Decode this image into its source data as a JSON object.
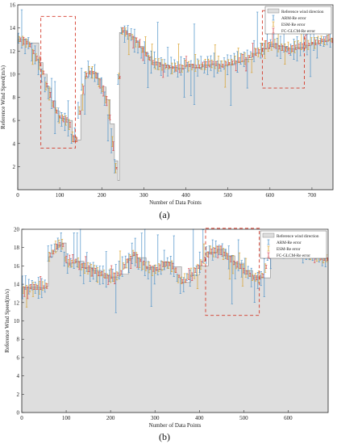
{
  "panel_labels": [
    "(a)",
    "(b)"
  ],
  "colors": {
    "reference_fill": "#dedede",
    "reference_edge": "#8c8c8c",
    "arm": "#4a90c8",
    "esm": "#d8a02a",
    "fcgl": "#d6434a",
    "highlight": "#d43a2a"
  },
  "chart_data": [
    {
      "type": "area",
      "panel": "(a)",
      "title": "",
      "xlabel": "Number of Data Points",
      "ylabel": "Reference Wind Speed(m/s)",
      "xlim": [
        0,
        750
      ],
      "ylim": [
        0,
        16
      ],
      "xticks": [
        0,
        100,
        200,
        300,
        400,
        500,
        600,
        700
      ],
      "yticks": [
        2,
        4,
        6,
        8,
        10,
        12,
        14,
        16
      ],
      "grid": false,
      "legend_position": "top-right",
      "legend": [
        "Reference wind direction",
        "ARM-Re error",
        "ESM-Re error",
        "FC-GLCM-Re error"
      ],
      "series": [
        {
          "name": "Reference wind direction",
          "x": [
            0,
            25,
            50,
            60,
            70,
            80,
            90,
            100,
            110,
            120,
            130,
            140,
            150,
            160,
            170,
            180,
            190,
            200,
            210,
            220,
            230,
            238,
            242,
            250,
            260,
            270,
            280,
            290,
            300,
            310,
            320,
            340,
            360,
            380,
            400,
            420,
            440,
            460,
            480,
            500,
            520,
            540,
            560,
            580,
            600,
            620,
            640,
            660,
            680,
            700,
            720,
            740,
            750
          ],
          "values": [
            13.0,
            12.7,
            11.0,
            10.0,
            8.8,
            7.7,
            6.8,
            6.2,
            6.1,
            6.0,
            4.6,
            4.3,
            8.2,
            9.8,
            10.2,
            10.1,
            9.6,
            8.9,
            7.8,
            5.7,
            2.5,
            0.8,
            13.6,
            13.8,
            13.5,
            13.2,
            12.9,
            12.4,
            11.9,
            11.5,
            11.0,
            10.8,
            10.6,
            10.5,
            10.8,
            10.6,
            10.8,
            10.9,
            10.7,
            10.9,
            11.1,
            11.3,
            11.8,
            12.2,
            12.6,
            12.4,
            12.2,
            12.3,
            12.5,
            12.7,
            12.9,
            13.0,
            13.0
          ]
        }
      ],
      "annotations": [
        {
          "type": "dashed-box",
          "x": [
            55,
            137
          ],
          "y": [
            3.6,
            15.0
          ]
        },
        {
          "type": "dashed-box",
          "x": [
            582,
            682
          ],
          "y": [
            8.8,
            15.5
          ]
        }
      ]
    },
    {
      "type": "area",
      "panel": "(b)",
      "title": "",
      "xlabel": "Number of Data Points",
      "ylabel": "Reference Wind Speed(m/s)",
      "xlim": [
        0,
        690
      ],
      "ylim": [
        0,
        20
      ],
      "xticks": [
        0,
        100,
        200,
        300,
        400,
        500,
        600
      ],
      "yticks": [
        0,
        2,
        4,
        6,
        8,
        10,
        12,
        14,
        16,
        18,
        20
      ],
      "grid": false,
      "legend_position": "top-right",
      "legend": [
        "Reference wind direction",
        "ARM-Re error",
        "ESM-Re error",
        "FC-GLCM-Re error"
      ],
      "series": [
        {
          "name": "Reference wind direction",
          "x": [
            0,
            20,
            40,
            55,
            60,
            70,
            80,
            90,
            100,
            120,
            140,
            160,
            180,
            200,
            220,
            240,
            250,
            260,
            280,
            300,
            320,
            340,
            360,
            380,
            400,
            420,
            440,
            460,
            480,
            500,
            520,
            540,
            560,
            580,
            600,
            620,
            640,
            660,
            680,
            690
          ],
          "values": [
            13.6,
            13.7,
            13.6,
            13.8,
            17.0,
            17.6,
            18.3,
            18.5,
            16.3,
            16.5,
            15.8,
            15.5,
            15.0,
            14.8,
            15.1,
            16.8,
            17.3,
            16.9,
            15.8,
            15.6,
            16.4,
            15.9,
            14.2,
            15.0,
            16.0,
            17.5,
            17.8,
            17.1,
            16.3,
            15.5,
            14.8,
            14.7,
            17.8,
            18.0,
            18.1,
            17.9,
            17.4,
            17.2,
            16.8,
            16.6
          ]
        }
      ],
      "annotations": [
        {
          "type": "dashed-box",
          "x": [
            414,
            535
          ],
          "y": [
            10.6,
            20.1
          ]
        }
      ]
    }
  ]
}
